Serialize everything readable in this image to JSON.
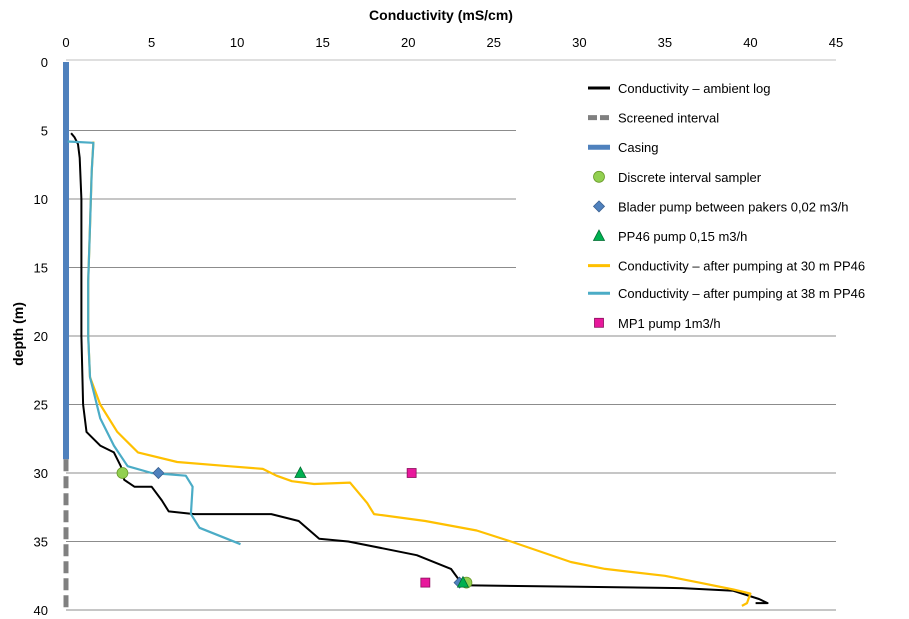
{
  "chart_data": {
    "type": "line",
    "xlabel": "Conductivity (mS/cm)",
    "ylabel": "depth (m)",
    "xlim": [
      0,
      45
    ],
    "ylim": [
      0,
      40
    ],
    "x_axis_position": "top",
    "y_axis_inverted": true,
    "x_ticks": [
      "0",
      "5",
      "10",
      "15",
      "20",
      "25",
      "30",
      "35",
      "40",
      "45"
    ],
    "y_ticks": [
      "0",
      "5",
      "10",
      "15",
      "20",
      "25",
      "30",
      "35",
      "40"
    ],
    "grid": "horizontal",
    "legend_position": "top-right",
    "series": [
      {
        "name": "Conductivity – ambient log",
        "kind": "line",
        "color": "#000000",
        "points": [
          [
            0.3,
            5.2
          ],
          [
            0.5,
            5.5
          ],
          [
            0.7,
            6
          ],
          [
            0.8,
            7
          ],
          [
            0.9,
            10
          ],
          [
            0.9,
            15
          ],
          [
            0.9,
            20
          ],
          [
            1.0,
            25
          ],
          [
            1.2,
            27
          ],
          [
            2.0,
            28
          ],
          [
            2.8,
            28.5
          ],
          [
            3.2,
            29.5
          ],
          [
            3.4,
            30.5
          ],
          [
            4.0,
            31
          ],
          [
            5.0,
            31
          ],
          [
            5.6,
            32
          ],
          [
            6.0,
            32.8
          ],
          [
            7.5,
            33
          ],
          [
            12,
            33
          ],
          [
            13.6,
            33.5
          ],
          [
            14.8,
            34.8
          ],
          [
            16.5,
            35
          ],
          [
            18.5,
            35.5
          ],
          [
            20.5,
            36
          ],
          [
            22.5,
            37
          ],
          [
            23.2,
            38.2
          ],
          [
            30,
            38.3
          ],
          [
            36,
            38.4
          ],
          [
            39,
            38.6
          ],
          [
            40.5,
            39.2
          ],
          [
            41,
            39.5
          ],
          [
            40.3,
            39.5
          ]
        ]
      },
      {
        "name": "Conductivity – after pumping at 30 m PP46",
        "kind": "line",
        "color": "#FFC000",
        "points": [
          [
            1.6,
            5.8
          ],
          [
            1.5,
            8
          ],
          [
            1.4,
            12
          ],
          [
            1.3,
            16
          ],
          [
            1.3,
            20
          ],
          [
            1.4,
            23
          ],
          [
            2.0,
            25
          ],
          [
            3.0,
            27
          ],
          [
            4.2,
            28.5
          ],
          [
            6.5,
            29.2
          ],
          [
            9.5,
            29.5
          ],
          [
            11.5,
            29.7
          ],
          [
            12.3,
            30.2
          ],
          [
            13.2,
            30.6
          ],
          [
            14.5,
            30.8
          ],
          [
            16.6,
            30.7
          ],
          [
            17.6,
            32.2
          ],
          [
            18.0,
            33
          ],
          [
            21.0,
            33.5
          ],
          [
            24.0,
            34.2
          ],
          [
            26.0,
            35
          ],
          [
            29.5,
            36.5
          ],
          [
            31.5,
            37
          ],
          [
            35.0,
            37.5
          ],
          [
            37.0,
            38
          ],
          [
            39.0,
            38.5
          ],
          [
            40.0,
            38.8
          ],
          [
            39.8,
            39.5
          ],
          [
            39.5,
            39.7
          ]
        ]
      },
      {
        "name": "Conductivity – after pumping at 38 m PP46",
        "kind": "line",
        "color": "#4BACC6",
        "points": [
          [
            0.1,
            5.8
          ],
          [
            1.6,
            5.9
          ],
          [
            1.5,
            8
          ],
          [
            1.4,
            12
          ],
          [
            1.3,
            16
          ],
          [
            1.3,
            20
          ],
          [
            1.4,
            23
          ],
          [
            2.0,
            26
          ],
          [
            2.8,
            28
          ],
          [
            3.6,
            29.5
          ],
          [
            5.0,
            30
          ],
          [
            7.0,
            30.2
          ],
          [
            7.4,
            31
          ],
          [
            7.3,
            33
          ],
          [
            7.8,
            34
          ],
          [
            10.2,
            35.2
          ]
        ]
      },
      {
        "name": "Screened interval",
        "kind": "dashed",
        "color": "#808080",
        "points": [
          [
            0,
            29
          ],
          [
            0,
            40
          ]
        ]
      },
      {
        "name": "Casing",
        "kind": "bar",
        "color": "#4F81BD",
        "points": [
          [
            0,
            0
          ],
          [
            0,
            29
          ]
        ]
      },
      {
        "name": "Discrete interval sampler",
        "kind": "marker",
        "marker": "circle",
        "color": "#92D050",
        "points": [
          [
            3.3,
            30
          ],
          [
            23.4,
            38
          ]
        ]
      },
      {
        "name": "Blader pump between pakers 0,02 m3/h",
        "kind": "marker",
        "marker": "diamond",
        "color": "#4F81BD",
        "points": [
          [
            5.4,
            30
          ],
          [
            23.0,
            38
          ]
        ]
      },
      {
        "name": "PP46 pump 0,15 m3/h",
        "kind": "marker",
        "marker": "triangle",
        "color": "#00B050",
        "points": [
          [
            13.7,
            30
          ],
          [
            23.2,
            38
          ]
        ]
      },
      {
        "name": "MP1 pump 1m3/h",
        "kind": "marker",
        "marker": "square",
        "color": "#E8189C",
        "points": [
          [
            20.2,
            30
          ],
          [
            21.0,
            38
          ]
        ]
      }
    ],
    "legend_order": [
      "Conductivity – ambient log",
      "Screened interval",
      "Casing",
      "Discrete interval sampler",
      "Blader pump between pakers 0,02 m3/h",
      "PP46 pump 0,15 m3/h",
      "Conductivity – after pumping at 30 m PP46",
      "Conductivity – after pumping at 38 m PP46",
      "MP1 pump 1m3/h"
    ]
  }
}
